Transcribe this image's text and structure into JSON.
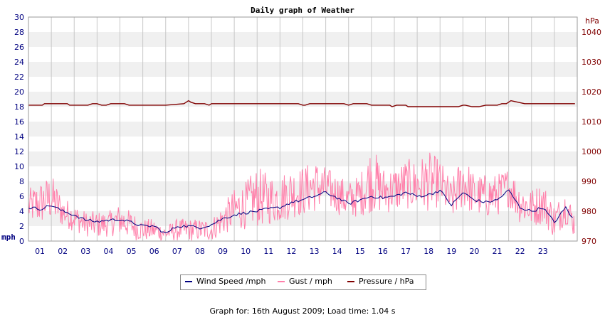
{
  "colors": {
    "wind": "#000080",
    "gust": "#ff7faa",
    "pressure": "#800000",
    "left_axis_text": "#000080",
    "right_axis_text": "#800000",
    "band": "#f0f0f0",
    "grid": "#c8c8c8"
  },
  "footer": "Graph for: 16th August 2009; Load time: 1.04 s",
  "chart_data": {
    "type": "line",
    "title": "Daily graph of Weather",
    "x_tick_labels": [
      "01",
      "02",
      "03",
      "04",
      "05",
      "06",
      "07",
      "08",
      "09",
      "10",
      "11",
      "12",
      "13",
      "14",
      "15",
      "16",
      "17",
      "18",
      "19",
      "20",
      "21",
      "22",
      "23"
    ],
    "x_range": [
      0,
      24
    ],
    "y_left": {
      "label": "mph",
      "range": [
        0,
        30
      ],
      "ticks": [
        0,
        2,
        4,
        6,
        8,
        10,
        12,
        14,
        16,
        18,
        20,
        22,
        24,
        26,
        28,
        30
      ]
    },
    "y_right": {
      "label": "hPa",
      "range": [
        970,
        1045
      ],
      "ticks": [
        970,
        980,
        990,
        1000,
        1010,
        1020,
        1030,
        1040
      ]
    },
    "grid": true,
    "legend_position": "bottom",
    "series": [
      {
        "name": "Wind Speed /mph",
        "axis": "left",
        "hours": [
          0,
          0.5,
          1,
          1.5,
          2,
          2.5,
          3,
          3.5,
          4,
          4.5,
          5,
          5.5,
          6,
          6.5,
          7,
          7.5,
          8,
          8.5,
          9,
          9.5,
          10,
          10.5,
          11,
          11.5,
          12,
          12.5,
          13,
          13.5,
          14,
          14.5,
          15,
          15.5,
          16,
          16.5,
          17,
          17.5,
          18,
          18.5,
          19,
          19.5,
          20,
          20.5,
          21,
          21.5,
          22,
          22.5,
          23,
          23.5,
          23.9
        ],
        "values": [
          4.5,
          4.3,
          4.8,
          4.0,
          3.5,
          2.8,
          2.6,
          2.8,
          2.9,
          2.5,
          2.0,
          2.0,
          1.0,
          2.0,
          2.0,
          1.8,
          2.2,
          3.0,
          3.5,
          3.8,
          4.0,
          4.3,
          4.5,
          5.2,
          5.5,
          6.0,
          6.5,
          5.8,
          5.0,
          5.5,
          6.0,
          5.8,
          6.0,
          6.5,
          6.0,
          6.2,
          6.8,
          4.8,
          6.5,
          5.5,
          5.2,
          5.5,
          6.8,
          4.5,
          4.0,
          4.5,
          2.5,
          4.5,
          2.5
        ]
      },
      {
        "name": "Gust / mph",
        "axis": "left",
        "hours": [
          0,
          0.5,
          1,
          1.5,
          2,
          2.5,
          3,
          3.5,
          4,
          4.5,
          5,
          5.5,
          6,
          6.5,
          7,
          7.5,
          8,
          8.5,
          9,
          9.5,
          10,
          10.5,
          11,
          11.5,
          12,
          12.5,
          13,
          13.5,
          14,
          14.5,
          15,
          15.5,
          16,
          16.5,
          17,
          17.5,
          18,
          18.5,
          19,
          19.5,
          20,
          20.5,
          21,
          21.5,
          22,
          22.5,
          23,
          23.5,
          23.9
        ],
        "values": [
          7,
          8,
          9,
          6,
          5,
          4,
          4,
          4,
          5,
          4,
          3,
          3,
          2,
          3,
          3,
          3,
          3,
          5,
          7,
          8,
          10,
          9,
          9,
          10,
          10,
          11,
          10,
          9,
          8,
          9,
          13,
          10,
          10,
          11,
          11,
          12,
          11,
          8,
          12,
          9,
          9,
          9,
          10,
          8,
          7,
          8,
          5,
          7,
          4
        ]
      },
      {
        "name": "Pressure / hPa",
        "axis": "right",
        "hours": [
          0,
          0.6,
          0.7,
          1.7,
          1.8,
          2.6,
          2.8,
          3.0,
          3.2,
          3.4,
          3.6,
          4.2,
          4.4,
          5.0,
          6.0,
          6.8,
          6.9,
          7.0,
          7.1,
          7.3,
          7.7,
          7.9,
          8.0,
          8.7,
          9.5,
          10.5,
          11.5,
          11.8,
          12.0,
          12.1,
          12.3,
          13.0,
          13.8,
          14.0,
          14.2,
          14.8,
          15.0,
          15.3,
          15.8,
          15.9,
          16.1,
          16.5,
          16.6,
          16.9,
          18.0,
          18.8,
          19.0,
          19.1,
          19.4,
          19.7,
          20.0,
          20.5,
          20.7,
          20.9,
          21.0,
          21.1,
          21.4,
          21.7,
          22.0,
          22.3,
          23.9
        ],
        "values": [
          1015.5,
          1015.5,
          1016,
          1016,
          1015.5,
          1015.5,
          1016,
          1016,
          1015.5,
          1015.5,
          1016,
          1016,
          1015.5,
          1015.5,
          1015.5,
          1016,
          1016.5,
          1017,
          1016.5,
          1016,
          1016,
          1015.5,
          1016,
          1016,
          1016,
          1016,
          1016,
          1016,
          1015.5,
          1015.5,
          1016,
          1016,
          1016,
          1015.5,
          1016,
          1016,
          1015.5,
          1015.5,
          1015.5,
          1015,
          1015.5,
          1015.5,
          1015,
          1015,
          1015,
          1015,
          1015.5,
          1015.5,
          1015,
          1015,
          1015.5,
          1015.5,
          1016,
          1016,
          1016.5,
          1017,
          1016.5,
          1016,
          1016,
          1016,
          1016
        ]
      }
    ]
  }
}
